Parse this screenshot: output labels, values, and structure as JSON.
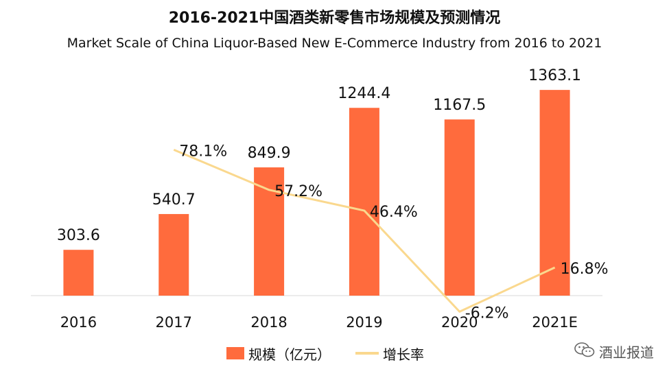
{
  "chart_data": {
    "type": "bar",
    "title": "2016-2021中国酒类新零售市场规模及预测情况",
    "subtitle": "Market Scale of China  Liquor-Based New E-Commerce Industry from 2016 to 2021",
    "categories": [
      "2016",
      "2017",
      "2018",
      "2019",
      "2020",
      "2021E"
    ],
    "series": [
      {
        "name": "规模（亿元）",
        "type": "bar",
        "color": "#FF6B3D",
        "values": [
          303.6,
          540.7,
          849.9,
          1244.4,
          1167.5,
          1363.1
        ],
        "labels": [
          "303.6",
          "540.7",
          "849.9",
          "1244.4",
          "1167.5",
          "1363.1"
        ]
      },
      {
        "name": "增长率",
        "type": "line",
        "color": "#FAD88E",
        "values": [
          null,
          78.1,
          57.2,
          46.4,
          -6.2,
          16.8
        ],
        "labels": [
          "",
          "78.1%",
          "57.2%",
          "46.4%",
          "-6.2%",
          "16.8%"
        ]
      }
    ],
    "ylim": [
      0,
      1400
    ],
    "y2lim": [
      -10,
      100
    ],
    "grid": false,
    "legend": "bottom"
  },
  "watermark": {
    "text": "酒业报道",
    "icon": "wechat-icon"
  }
}
